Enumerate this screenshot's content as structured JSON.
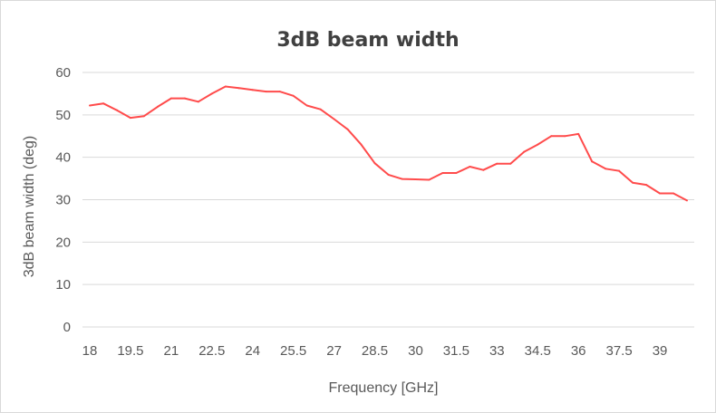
{
  "chart_data": {
    "type": "line",
    "title": "3dB beam width",
    "xlabel": "Frequency [GHz]",
    "ylabel": "3dB beam width (deg)",
    "ylim": [
      0,
      60
    ],
    "yticks": [
      "0",
      "10",
      "20",
      "30",
      "40",
      "50",
      "60"
    ],
    "xtick_labels": [
      "18",
      "19.5",
      "21",
      "22.5",
      "24",
      "25.5",
      "27",
      "28.5",
      "30",
      "31.5",
      "33",
      "34.5",
      "36",
      "37.5",
      "39"
    ],
    "grid": true,
    "legend": "none",
    "series_color": "#ff4b4b",
    "x": [
      18,
      18.5,
      19,
      19.5,
      20,
      20.5,
      21,
      21.5,
      22,
      22.5,
      23,
      23.5,
      24,
      24.5,
      25,
      25.5,
      26,
      26.5,
      27,
      27.5,
      28,
      28.5,
      29,
      29.5,
      30,
      30.5,
      31,
      31.5,
      32,
      32.5,
      33,
      33.5,
      34,
      34.5,
      35,
      35.5,
      36,
      36.5,
      37,
      37.5,
      38,
      38.5,
      39,
      39.5,
      40
    ],
    "series": [
      {
        "values": [
          52.2,
          52.7,
          51.1,
          49.3,
          49.7,
          51.9,
          53.9,
          53.9,
          53.1,
          55.0,
          56.7,
          56.3,
          55.9,
          55.5,
          55.5,
          54.5,
          52.2,
          51.3,
          49.0,
          46.6,
          43.0,
          38.6,
          35.9,
          34.9,
          34.8,
          34.7,
          36.3,
          36.3,
          37.8,
          37.0,
          38.5,
          38.5,
          41.3,
          43.0,
          45.0,
          45.0,
          45.5,
          39.0,
          37.3,
          36.8,
          34.0,
          33.5,
          31.5,
          31.5,
          29.8
        ]
      }
    ]
  }
}
